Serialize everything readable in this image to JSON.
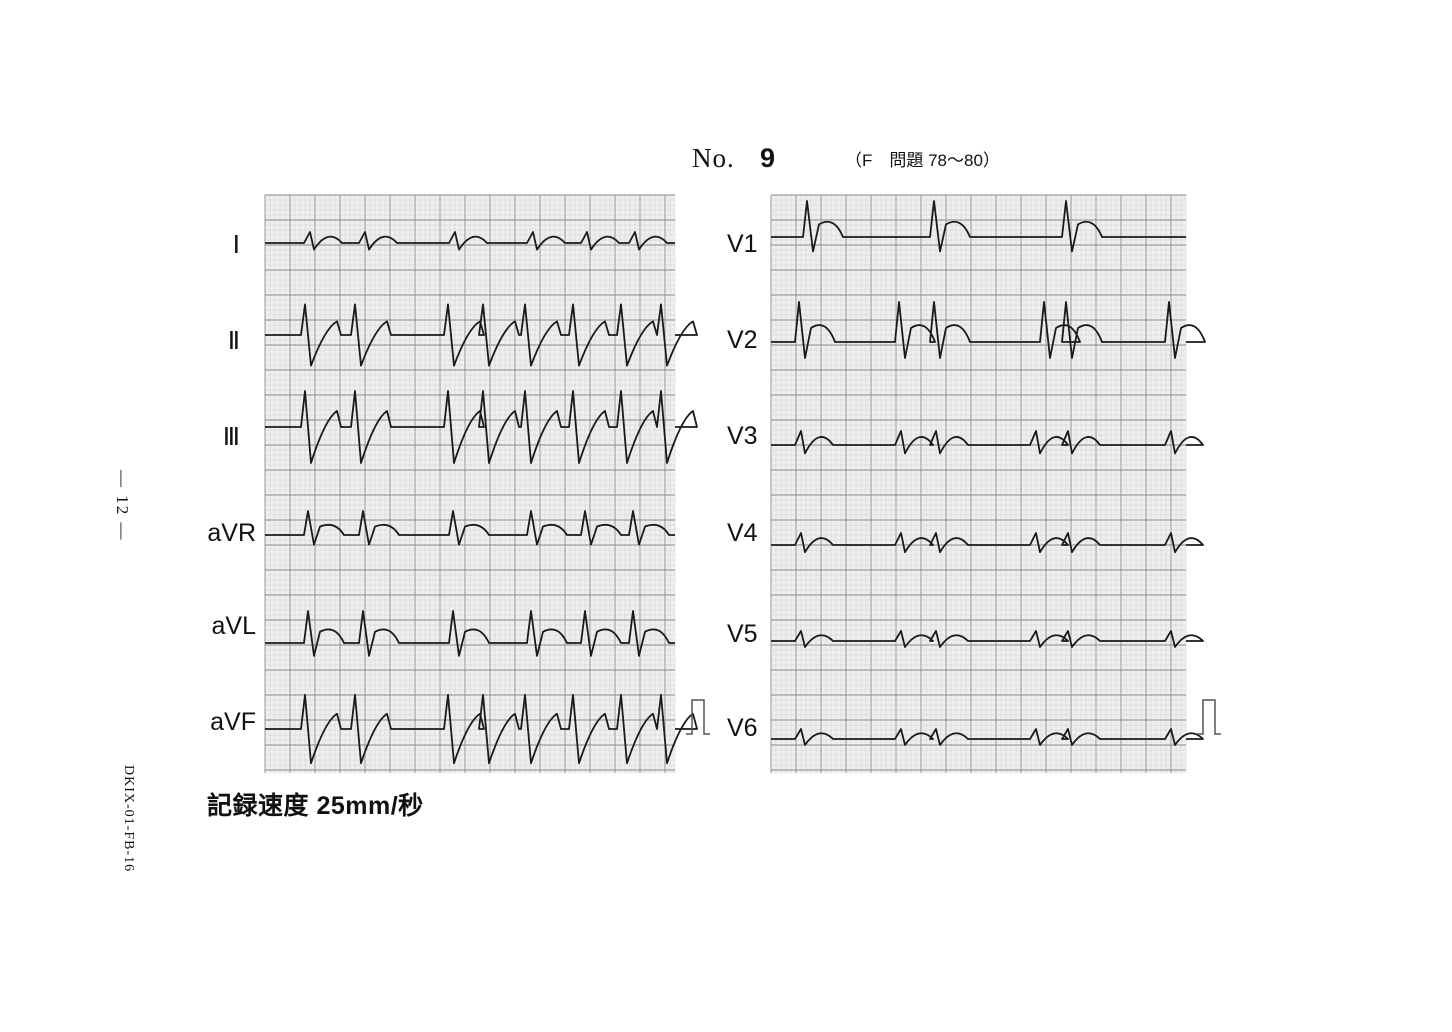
{
  "header": {
    "no_label": "No.",
    "number": "9",
    "reference": "（F　問題 78〜80）"
  },
  "leads_left": [
    "Ⅰ",
    "Ⅱ",
    "Ⅲ",
    "aVR",
    "aVL",
    "aVF"
  ],
  "leads_right": [
    "V1",
    "V2",
    "V3",
    "V4",
    "V5",
    "V6"
  ],
  "footer": {
    "speed": "記録速度 25mm/秒"
  },
  "margin": {
    "page_number": "— 12 —",
    "document_code": "DKIX-01-FB-16"
  },
  "colors": {
    "grid_minor": "#c9c9c9",
    "grid_major": "#8a8a8a",
    "grid_bg": "#efefef",
    "trace": "#1a1a1a"
  }
}
